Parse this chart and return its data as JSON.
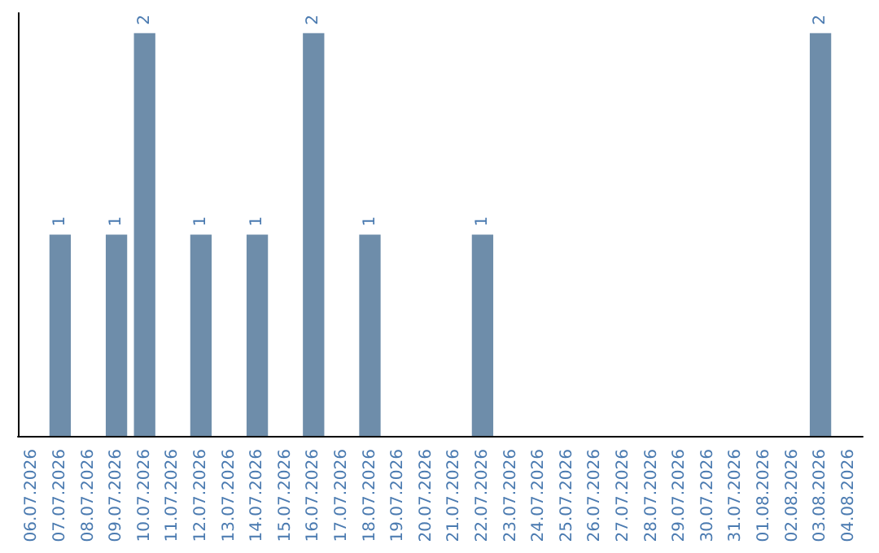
{
  "chart_data": {
    "type": "bar",
    "categories": [
      "06.07.2026",
      "07.07.2026",
      "08.07.2026",
      "09.07.2026",
      "10.07.2026",
      "11.07.2026",
      "12.07.2026",
      "13.07.2026",
      "14.07.2026",
      "15.07.2026",
      "16.07.2026",
      "17.07.2026",
      "18.07.2026",
      "19.07.2026",
      "20.07.2026",
      "21.07.2026",
      "22.07.2026",
      "23.07.2026",
      "24.07.2026",
      "25.07.2026",
      "26.07.2026",
      "27.07.2026",
      "28.07.2026",
      "29.07.2026",
      "30.07.2026",
      "31.07.2026",
      "01.08.2026",
      "02.08.2026",
      "03.08.2026",
      "04.08.2026"
    ],
    "values": [
      0,
      1,
      0,
      1,
      2,
      0,
      1,
      0,
      1,
      0,
      2,
      0,
      1,
      0,
      0,
      0,
      1,
      0,
      0,
      0,
      0,
      0,
      0,
      0,
      0,
      0,
      0,
      0,
      2,
      0
    ],
    "value_labels": [
      null,
      "1",
      null,
      "1",
      "2",
      null,
      "1",
      null,
      "1",
      null,
      "2",
      null,
      "1",
      null,
      null,
      null,
      "1",
      null,
      null,
      null,
      null,
      null,
      null,
      null,
      null,
      null,
      null,
      null,
      "2",
      null
    ],
    "color": "#6e8daa",
    "ylim": [
      0,
      2.1
    ],
    "tick_labels": "x"
  }
}
